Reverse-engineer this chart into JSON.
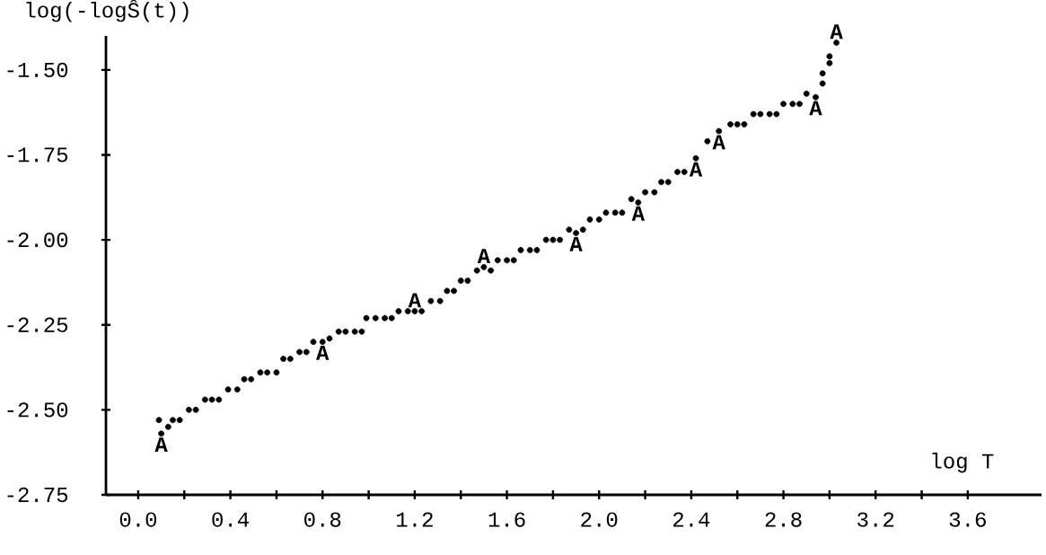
{
  "chart_data": {
    "type": "scatter",
    "ylabel": "log(-logŜ(t))",
    "xlabel": "log T",
    "x": [
      0.09,
      0.1,
      0.13,
      0.15,
      0.18,
      0.22,
      0.25,
      0.29,
      0.32,
      0.35,
      0.39,
      0.43,
      0.46,
      0.49,
      0.53,
      0.56,
      0.6,
      0.63,
      0.66,
      0.7,
      0.73,
      0.76,
      0.8,
      0.83,
      0.87,
      0.9,
      0.94,
      0.97,
      0.99,
      1.03,
      1.07,
      1.1,
      1.13,
      1.17,
      1.2,
      1.23,
      1.27,
      1.31,
      1.34,
      1.37,
      1.4,
      1.43,
      1.47,
      1.5,
      1.53,
      1.56,
      1.6,
      1.63,
      1.66,
      1.7,
      1.73,
      1.77,
      1.8,
      1.83,
      1.87,
      1.9,
      1.93,
      1.96,
      2.0,
      2.03,
      2.07,
      2.1,
      2.14,
      2.17,
      2.2,
      2.24,
      2.27,
      2.3,
      2.34,
      2.37,
      2.42,
      2.47,
      2.52,
      2.57,
      2.6,
      2.63,
      2.67,
      2.7,
      2.74,
      2.77,
      2.8,
      2.84,
      2.87,
      2.9,
      2.94,
      2.97,
      2.97,
      3.0,
      3.0,
      3.03
    ],
    "series": [
      {
        "color": "#000000",
        "values": [
          -2.53,
          -2.57,
          -2.55,
          -2.53,
          -2.53,
          -2.5,
          -2.5,
          -2.47,
          -2.47,
          -2.47,
          -2.44,
          -2.44,
          -2.41,
          -2.41,
          -2.39,
          -2.39,
          -2.39,
          -2.35,
          -2.35,
          -2.33,
          -2.33,
          -2.3,
          -2.3,
          -2.29,
          -2.27,
          -2.27,
          -2.27,
          -2.27,
          -2.23,
          -2.23,
          -2.23,
          -2.23,
          -2.21,
          -2.21,
          -2.21,
          -2.21,
          -2.18,
          -2.18,
          -2.15,
          -2.15,
          -2.12,
          -2.12,
          -2.09,
          -2.08,
          -2.09,
          -2.06,
          -2.06,
          -2.06,
          -2.03,
          -2.03,
          -2.03,
          -2.0,
          -2.0,
          -2.0,
          -1.97,
          -1.98,
          -1.97,
          -1.94,
          -1.94,
          -1.92,
          -1.92,
          -1.92,
          -1.88,
          -1.89,
          -1.86,
          -1.86,
          -1.83,
          -1.83,
          -1.8,
          -1.8,
          -1.76,
          -1.71,
          -1.68,
          -1.66,
          -1.66,
          -1.66,
          -1.63,
          -1.63,
          -1.63,
          -1.63,
          -1.6,
          -1.6,
          -1.6,
          -1.57,
          -1.58,
          -1.54,
          -1.51,
          -1.48,
          -1.46,
          -1.42
        ]
      }
    ],
    "xlim": [
      -0.14,
      3.92
    ],
    "ylim": [
      -2.75,
      -1.4
    ],
    "xticks": [
      {
        "value": 0,
        "label": "0.0"
      },
      {
        "value": 0.2,
        "label": null
      },
      0.4,
      {
        "value": 0.6,
        "label": null
      },
      0.8,
      {
        "value": 1.0,
        "label": null
      },
      1.2,
      {
        "value": 1.4,
        "label": null
      },
      1.6,
      {
        "value": 1.8,
        "label": null
      },
      {
        "value": 2.0,
        "label": "2.0"
      },
      {
        "value": 2.2,
        "label": null
      },
      2.4,
      {
        "value": 2.6,
        "label": null
      },
      2.8,
      {
        "value": 3.0,
        "label": null
      },
      3.2,
      {
        "value": 3.4,
        "label": null
      },
      3.6
    ],
    "yticks": [
      {
        "value": -1.5,
        "label": "-1.50"
      },
      -1.75,
      {
        "value": -2.0,
        "label": "-2.00"
      },
      -2.25,
      {
        "value": -2.5,
        "label": "-2.50"
      },
      -2.75
    ],
    "annotations": [
      {
        "text": "A",
        "x": 0.1,
        "y": -2.57
      },
      {
        "text": "A",
        "x": 0.8,
        "y": -2.3
      },
      {
        "text": "A",
        "x": 1.2,
        "y": -2.21
      },
      {
        "text": "A",
        "x": 1.5,
        "y": -2.08
      },
      {
        "text": "A",
        "x": 1.9,
        "y": -1.98
      },
      {
        "text": "A",
        "x": 2.17,
        "y": -1.89
      },
      {
        "text": "A",
        "x": 2.42,
        "y": -1.76
      },
      {
        "text": "A",
        "x": 2.52,
        "y": -1.68
      },
      {
        "text": "A",
        "x": 2.94,
        "y": -1.58
      },
      {
        "text": "A",
        "x": 3.03,
        "y": -1.42
      }
    ]
  }
}
